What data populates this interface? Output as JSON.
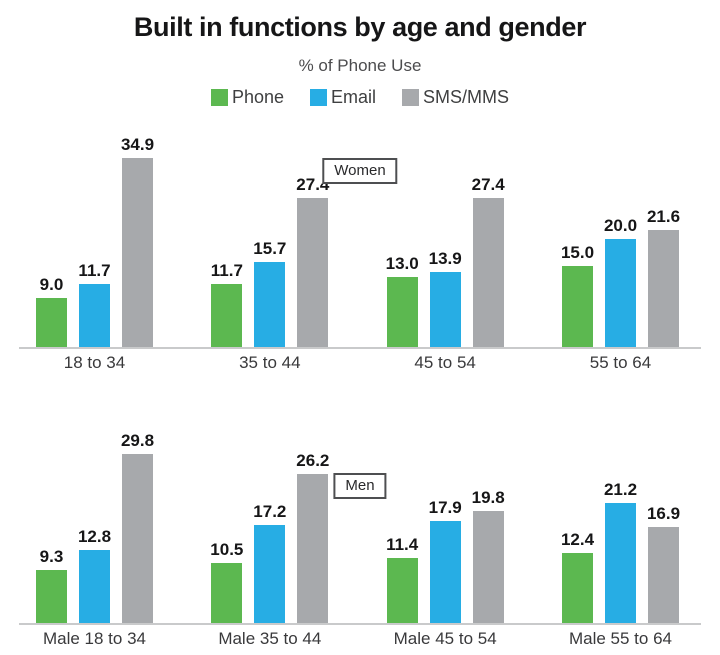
{
  "title": "Built in functions by age and gender",
  "subtitle": "% of Phone Use",
  "legend": [
    {
      "label": "Phone",
      "color": "#5cb850"
    },
    {
      "label": "Email",
      "color": "#27ade4"
    },
    {
      "label": "SMS/MMS",
      "color": "#a7a9ac"
    }
  ],
  "chart_data": {
    "type": "bar",
    "title": "Built in functions by age and gender",
    "subtitle": "% of Phone Use",
    "legend_position": "top",
    "grid": false,
    "value_labels": "one-decimal",
    "panels": [
      {
        "label": "Women",
        "categories": [
          "18 to 34",
          "35 to 44",
          "45 to 54",
          "55 to 64"
        ],
        "series": [
          {
            "name": "Phone",
            "color": "#5cb850",
            "values": [
              9.0,
              11.7,
              13.0,
              15.0
            ]
          },
          {
            "name": "Email",
            "color": "#27ade4",
            "values": [
              11.7,
              15.7,
              13.9,
              20.0
            ]
          },
          {
            "name": "SMS/MMS",
            "color": "#a7a9ac",
            "values": [
              34.9,
              27.4,
              27.4,
              21.6
            ]
          }
        ],
        "ylim": [
          0,
          39.1
        ]
      },
      {
        "label": "Men",
        "categories": [
          "Male 18 to 34",
          "Male 35 to 44",
          "Male 45 to 54",
          "Male 55 to 64"
        ],
        "series": [
          {
            "name": "Phone",
            "color": "#5cb850",
            "values": [
              9.3,
              10.5,
              11.4,
              12.4
            ]
          },
          {
            "name": "Email",
            "color": "#27ade4",
            "values": [
              12.8,
              17.2,
              17.9,
              21.2
            ]
          },
          {
            "name": "SMS/MMS",
            "color": "#a7a9ac",
            "values": [
              29.8,
              26.2,
              19.8,
              16.9
            ]
          }
        ],
        "ylim": [
          0,
          33.5
        ]
      }
    ]
  }
}
